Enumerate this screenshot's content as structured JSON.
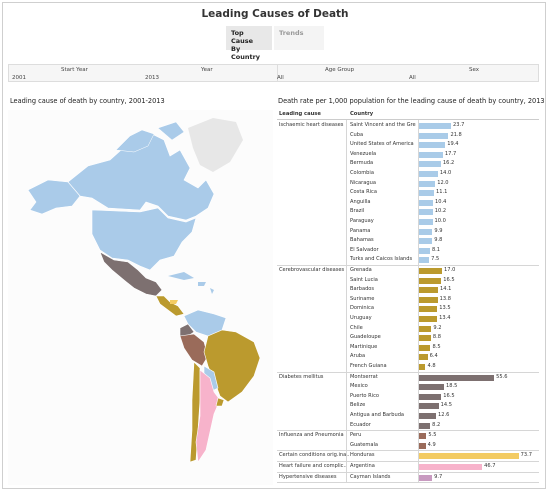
{
  "title": "Leading Causes of Death",
  "tabs": [
    {
      "label": "Top Cause\nBy Country",
      "active": true
    },
    {
      "label": "Trends",
      "active": false
    }
  ],
  "filters": {
    "start_year": {
      "label": "Start Year",
      "value": "2001"
    },
    "year": {
      "label": "Year",
      "value": "2013"
    },
    "age_group": {
      "label": "Age Group",
      "value": "All"
    },
    "sex": {
      "label": "Sex",
      "value": "All"
    }
  },
  "map_title": "Leading cause of death by country, 2001-2013",
  "table_title": "Death rate per 1,000 population for the leading cause of death by country, 2013",
  "headers": {
    "cause": "Leading cause",
    "country": "Country"
  },
  "colors": {
    "ischaemic": "#a9cbe8",
    "cerebro": "#bb9a2e",
    "diabetes": "#7d7070",
    "influenza": "#9a6b5a",
    "conditions": "#f3cb63",
    "heart_failure": "#f7b3cb",
    "hypertensive": "#c89ac0"
  },
  "chart_data": {
    "type": "bar",
    "groups": [
      {
        "cause": "Ischaemic heart diseases",
        "color_key": "ischaemic",
        "rows": [
          {
            "country": "Saint Vincent and the Gre..",
            "value": 23.7
          },
          {
            "country": "Cuba",
            "value": 21.8
          },
          {
            "country": "United States of America",
            "value": 19.4
          },
          {
            "country": "Venezuela",
            "value": 17.7
          },
          {
            "country": "Bermuda",
            "value": 16.2
          },
          {
            "country": "Colombia",
            "value": 14.0
          },
          {
            "country": "Nicaragua",
            "value": 12.0
          },
          {
            "country": "Costa Rica",
            "value": 11.1
          },
          {
            "country": "Anguilla",
            "value": 10.4
          },
          {
            "country": "Brazil",
            "value": 10.2
          },
          {
            "country": "Paraguay",
            "value": 10.0
          },
          {
            "country": "Panama",
            "value": 9.9
          },
          {
            "country": "Bahamas",
            "value": 9.8
          },
          {
            "country": "El Salvador",
            "value": 8.1
          },
          {
            "country": "Turks and Caicos Islands",
            "value": 7.5
          }
        ]
      },
      {
        "cause": "Cerebrovascular diseases",
        "color_key": "cerebro",
        "rows": [
          {
            "country": "Grenada",
            "value": 17.0
          },
          {
            "country": "Saint Lucia",
            "value": 16.5
          },
          {
            "country": "Barbados",
            "value": 14.1
          },
          {
            "country": "Suriname",
            "value": 13.8
          },
          {
            "country": "Dominica",
            "value": 13.5
          },
          {
            "country": "Uruguay",
            "value": 13.4
          },
          {
            "country": "Chile",
            "value": 9.2
          },
          {
            "country": "Guadeloupe",
            "value": 8.8
          },
          {
            "country": "Martinique",
            "value": 8.5
          },
          {
            "country": "Aruba",
            "value": 6.4
          },
          {
            "country": "French Guiana",
            "value": 4.8
          }
        ]
      },
      {
        "cause": "Diabetes mellitus",
        "color_key": "diabetes",
        "rows": [
          {
            "country": "Montserrat",
            "value": 55.6
          },
          {
            "country": "Mexico",
            "value": 18.5
          },
          {
            "country": "Puerto Rico",
            "value": 16.5
          },
          {
            "country": "Belize",
            "value": 14.5
          },
          {
            "country": "Antigua and Barbuda",
            "value": 12.6
          },
          {
            "country": "Ecuador",
            "value": 8.2
          }
        ]
      },
      {
        "cause": "Influenza and Pneumonia",
        "color_key": "influenza",
        "rows": [
          {
            "country": "Peru",
            "value": 5.5
          },
          {
            "country": "Guatemala",
            "value": 4.9
          }
        ]
      },
      {
        "cause": "Certain conditions orig.ina..",
        "color_key": "conditions",
        "rows": [
          {
            "country": "Honduras",
            "value": 73.7
          }
        ]
      },
      {
        "cause": "Heart failure and complic..",
        "color_key": "heart_failure",
        "rows": [
          {
            "country": "Argentina",
            "value": 46.7
          }
        ]
      },
      {
        "cause": "Hypertensive diseases",
        "color_key": "hypertensive",
        "rows": [
          {
            "country": "Cayman Islands",
            "value": 9.7
          }
        ]
      }
    ],
    "xlim": [
      0,
      74
    ]
  }
}
